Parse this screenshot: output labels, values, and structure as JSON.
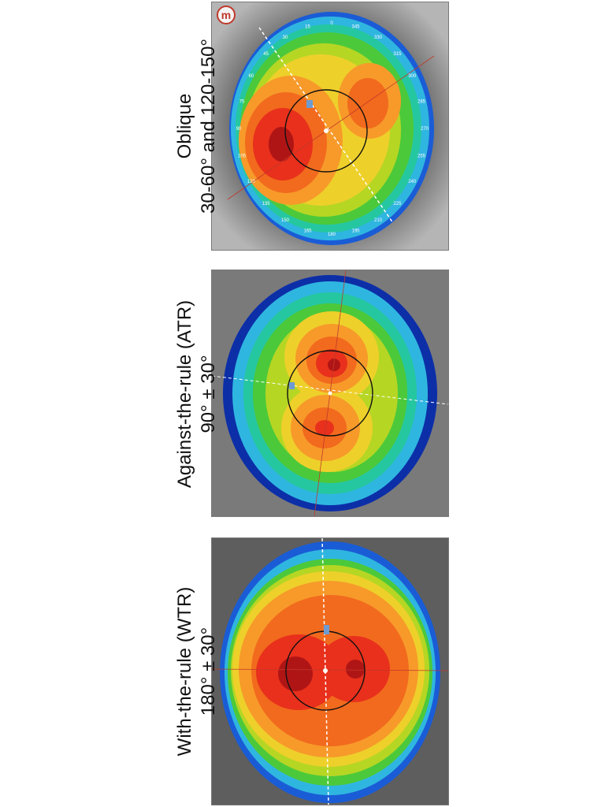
{
  "maps": [
    {
      "id": "oblique",
      "pattern": "Oblique",
      "axis_range": "30-60° and 120-150°",
      "axis_numbers": [
        "180",
        "165",
        "150",
        "135",
        "120",
        "105",
        "90",
        "75",
        "60",
        "45",
        "30",
        "15",
        "0",
        "345",
        "330",
        "315",
        "300",
        "285",
        "270",
        "255",
        "240",
        "225",
        "210",
        "195"
      ]
    },
    {
      "id": "atr",
      "pattern": "Against-the-rule (ATR)",
      "axis_range": "90° ± 30°"
    },
    {
      "id": "wtr",
      "pattern": "With-the-rule (WTR)",
      "axis_range": "180° ± 30°"
    }
  ],
  "colors": {
    "dark_red": "#b01515",
    "red": "#e8301c",
    "orange": "#f26a1d",
    "light_orange": "#f79a2a",
    "yellow": "#eed02a",
    "yellow_green": "#b6d624",
    "green": "#4cc93a",
    "teal": "#25c7a0",
    "cyan": "#2fb6e0",
    "blue": "#1a5cd6",
    "dark_blue": "#0c2fa8",
    "background_gray": "#9a9a9a"
  },
  "logo_text": "m"
}
